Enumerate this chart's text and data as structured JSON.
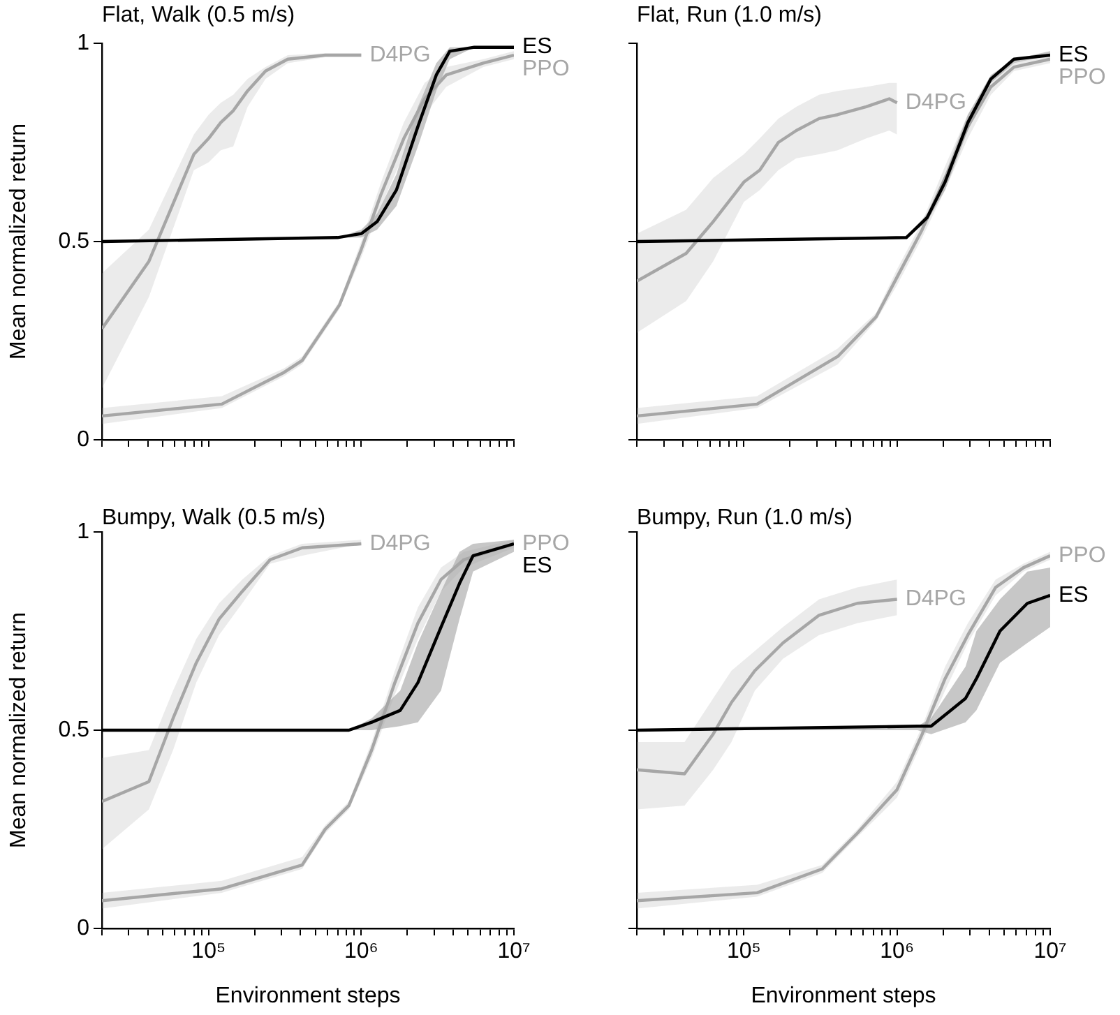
{
  "chart_data": [
    {
      "type": "line",
      "title": "Flat, Walk (0.5 m/s)",
      "ylabel": "Mean normalized return",
      "log": "x",
      "tick_labels": "y",
      "xlim": [
        20000,
        10000000
      ],
      "ylim": [
        0,
        1
      ],
      "yticks": [
        0,
        0.5,
        1
      ],
      "xticks": [
        {
          "value": 20000,
          "label": null
        },
        {
          "value": 30000,
          "label": null
        },
        {
          "value": 40000,
          "label": null
        },
        {
          "value": 50000,
          "label": null
        },
        {
          "value": 60000,
          "label": null
        },
        {
          "value": 70000,
          "label": null
        },
        {
          "value": 80000,
          "label": null
        },
        {
          "value": 90000,
          "label": null
        },
        {
          "value": 100000,
          "label": null
        },
        {
          "value": 200000,
          "label": null
        },
        {
          "value": 300000,
          "label": null
        },
        {
          "value": 400000,
          "label": null
        },
        {
          "value": 500000,
          "label": null
        },
        {
          "value": 600000,
          "label": null
        },
        {
          "value": 700000,
          "label": null
        },
        {
          "value": 800000,
          "label": null
        },
        {
          "value": 900000,
          "label": null
        },
        {
          "value": 1000000,
          "label": null
        },
        {
          "value": 2000000,
          "label": null
        },
        {
          "value": 3000000,
          "label": null
        },
        {
          "value": 4000000,
          "label": null
        },
        {
          "value": 5000000,
          "label": null
        },
        {
          "value": 6000000,
          "label": null
        },
        {
          "value": 7000000,
          "label": null
        },
        {
          "value": 8000000,
          "label": null
        },
        {
          "value": 9000000,
          "label": null
        },
        {
          "value": 10000000,
          "label": null
        }
      ],
      "series": [
        {
          "name": "D4PG",
          "color": "#a6a6a6",
          "x": [
            20000,
            40600,
            80000,
            100000,
            120000,
            145000,
            180000,
            236000,
            330000,
            580000,
            1000000
          ],
          "values": [
            0.28,
            0.45,
            0.72,
            0.76,
            0.8,
            0.83,
            0.88,
            0.93,
            0.96,
            0.97,
            0.97
          ],
          "lower": [
            0.13,
            0.36,
            0.68,
            0.7,
            0.73,
            0.74,
            0.84,
            0.91,
            0.95,
            0.965,
            0.965
          ],
          "upper": [
            0.42,
            0.53,
            0.77,
            0.82,
            0.85,
            0.87,
            0.91,
            0.94,
            0.97,
            0.975,
            0.975
          ]
        },
        {
          "name": "PPO",
          "color": "#a6a6a6",
          "x": [
            20000,
            122000,
            312000,
            410000,
            720000,
            1000000,
            1350000,
            1900000,
            2600000,
            3600000,
            6300000,
            10000000
          ],
          "values": [
            0.06,
            0.09,
            0.17,
            0.2,
            0.34,
            0.48,
            0.62,
            0.76,
            0.86,
            0.92,
            0.95,
            0.97
          ],
          "lower": [
            0.04,
            0.08,
            0.16,
            0.19,
            0.33,
            0.46,
            0.59,
            0.72,
            0.82,
            0.89,
            0.94,
            0.96
          ],
          "upper": [
            0.08,
            0.11,
            0.18,
            0.21,
            0.35,
            0.5,
            0.65,
            0.8,
            0.9,
            0.94,
            0.96,
            0.98
          ]
        },
        {
          "name": "ES",
          "color": "#000000",
          "x": [
            20000,
            700000,
            1000000,
            1270000,
            1700000,
            2350000,
            3100000,
            3800000,
            5500000,
            10000000
          ],
          "values": [
            0.5,
            0.51,
            0.52,
            0.55,
            0.63,
            0.79,
            0.92,
            0.98,
            0.99,
            0.99
          ],
          "lower": [
            0.5,
            0.51,
            0.51,
            0.53,
            0.59,
            0.74,
            0.88,
            0.96,
            0.99,
            0.99
          ],
          "upper": [
            0.5,
            0.51,
            0.53,
            0.57,
            0.67,
            0.84,
            0.95,
            0.99,
            0.99,
            0.99
          ]
        }
      ]
    },
    {
      "type": "line",
      "title": "Flat, Run (1.0 m/s)",
      "log": "x",
      "tick_labels": false,
      "xlim": [
        20000,
        10000000
      ],
      "ylim": [
        0,
        1
      ],
      "yticks": [
        {
          "value": 0,
          "label": null
        },
        {
          "value": 0.5,
          "label": null
        },
        {
          "value": 1,
          "label": null
        }
      ],
      "xticks": [
        {
          "value": 20000,
          "label": null
        },
        {
          "value": 30000,
          "label": null
        },
        {
          "value": 40000,
          "label": null
        },
        {
          "value": 50000,
          "label": null
        },
        {
          "value": 60000,
          "label": null
        },
        {
          "value": 70000,
          "label": null
        },
        {
          "value": 80000,
          "label": null
        },
        {
          "value": 90000,
          "label": null
        },
        {
          "value": 100000,
          "label": null
        },
        {
          "value": 200000,
          "label": null
        },
        {
          "value": 300000,
          "label": null
        },
        {
          "value": 400000,
          "label": null
        },
        {
          "value": 500000,
          "label": null
        },
        {
          "value": 600000,
          "label": null
        },
        {
          "value": 700000,
          "label": null
        },
        {
          "value": 800000,
          "label": null
        },
        {
          "value": 900000,
          "label": null
        },
        {
          "value": 1000000,
          "label": null
        },
        {
          "value": 2000000,
          "label": null
        },
        {
          "value": 3000000,
          "label": null
        },
        {
          "value": 4000000,
          "label": null
        },
        {
          "value": 5000000,
          "label": null
        },
        {
          "value": 6000000,
          "label": null
        },
        {
          "value": 7000000,
          "label": null
        },
        {
          "value": 8000000,
          "label": null
        },
        {
          "value": 9000000,
          "label": null
        },
        {
          "value": 10000000,
          "label": null
        }
      ],
      "series": [
        {
          "name": "D4PG",
          "color": "#a6a6a6",
          "x": [
            20000,
            42000,
            63000,
            100000,
            127000,
            168000,
            220000,
            310000,
            410000,
            630000,
            890000,
            1000000
          ],
          "values": [
            0.4,
            0.47,
            0.55,
            0.65,
            0.68,
            0.75,
            0.78,
            0.81,
            0.82,
            0.84,
            0.86,
            0.85
          ],
          "lower": [
            0.27,
            0.35,
            0.45,
            0.6,
            0.63,
            0.68,
            0.71,
            0.72,
            0.73,
            0.76,
            0.78,
            0.77
          ],
          "upper": [
            0.52,
            0.58,
            0.66,
            0.72,
            0.76,
            0.81,
            0.84,
            0.87,
            0.88,
            0.89,
            0.9,
            0.9
          ]
        },
        {
          "name": "PPO",
          "color": "#a6a6a6",
          "x": [
            20000,
            122000,
            410000,
            730000,
            1000000,
            1460000,
            2060000,
            2900000,
            4100000,
            5800000,
            10000000
          ],
          "values": [
            0.06,
            0.09,
            0.21,
            0.31,
            0.41,
            0.53,
            0.66,
            0.79,
            0.89,
            0.94,
            0.96
          ],
          "lower": [
            0.04,
            0.08,
            0.19,
            0.3,
            0.39,
            0.51,
            0.63,
            0.76,
            0.87,
            0.93,
            0.95
          ],
          "upper": [
            0.08,
            0.11,
            0.23,
            0.32,
            0.43,
            0.55,
            0.69,
            0.82,
            0.91,
            0.95,
            0.97
          ]
        },
        {
          "name": "ES",
          "color": "#000000",
          "x": [
            20000,
            1150000,
            1570000,
            2060000,
            2900000,
            4100000,
            5800000,
            10000000
          ],
          "values": [
            0.5,
            0.51,
            0.56,
            0.65,
            0.8,
            0.91,
            0.96,
            0.97
          ],
          "lower": [
            0.5,
            0.51,
            0.55,
            0.63,
            0.78,
            0.9,
            0.95,
            0.97
          ],
          "upper": [
            0.5,
            0.51,
            0.57,
            0.67,
            0.82,
            0.92,
            0.96,
            0.98
          ]
        }
      ]
    },
    {
      "type": "line",
      "title": "Bumpy, Walk (0.5 m/s)",
      "xlabel": "Environment steps",
      "ylabel": "Mean normalized return",
      "log": "x",
      "xlim": [
        20000,
        10000000
      ],
      "ylim": [
        0,
        1
      ],
      "yticks": [
        0,
        0.5,
        1
      ],
      "xticks": [
        {
          "value": 20000,
          "label": null
        },
        {
          "value": 30000,
          "label": null
        },
        {
          "value": 40000,
          "label": null
        },
        {
          "value": 50000,
          "label": null
        },
        {
          "value": 60000,
          "label": null
        },
        {
          "value": 70000,
          "label": null
        },
        {
          "value": 80000,
          "label": null
        },
        {
          "value": 90000,
          "label": null
        },
        {
          "value": 100000,
          "label": "10⁵"
        },
        {
          "value": 200000,
          "label": null
        },
        {
          "value": 300000,
          "label": null
        },
        {
          "value": 400000,
          "label": null
        },
        {
          "value": 500000,
          "label": null
        },
        {
          "value": 600000,
          "label": null
        },
        {
          "value": 700000,
          "label": null
        },
        {
          "value": 800000,
          "label": null
        },
        {
          "value": 900000,
          "label": null
        },
        {
          "value": 1000000,
          "label": "10⁶"
        },
        {
          "value": 2000000,
          "label": null
        },
        {
          "value": 3000000,
          "label": null
        },
        {
          "value": 4000000,
          "label": null
        },
        {
          "value": 5000000,
          "label": null
        },
        {
          "value": 6000000,
          "label": null
        },
        {
          "value": 7000000,
          "label": null
        },
        {
          "value": 8000000,
          "label": null
        },
        {
          "value": 9000000,
          "label": null
        },
        {
          "value": 10000000,
          "label": "10⁷"
        }
      ],
      "series": [
        {
          "name": "D4PG",
          "color": "#a6a6a6",
          "x": [
            20000,
            40600,
            58500,
            83000,
            117000,
            166000,
            253000,
            410000,
            1000000
          ],
          "values": [
            0.32,
            0.37,
            0.53,
            0.67,
            0.78,
            0.85,
            0.93,
            0.96,
            0.97
          ],
          "lower": [
            0.2,
            0.3,
            0.45,
            0.62,
            0.74,
            0.82,
            0.92,
            0.94,
            0.97
          ],
          "upper": [
            0.43,
            0.45,
            0.6,
            0.73,
            0.82,
            0.88,
            0.94,
            0.97,
            0.98
          ]
        },
        {
          "name": "PPO",
          "color": "#a6a6a6",
          "x": [
            20000,
            122000,
            410000,
            580000,
            830000,
            1170000,
            1660000,
            2350000,
            3330000,
            4700000,
            10000000
          ],
          "values": [
            0.07,
            0.1,
            0.16,
            0.25,
            0.31,
            0.45,
            0.62,
            0.77,
            0.88,
            0.93,
            0.97
          ],
          "lower": [
            0.05,
            0.09,
            0.15,
            0.24,
            0.3,
            0.43,
            0.59,
            0.73,
            0.85,
            0.91,
            0.96
          ],
          "upper": [
            0.09,
            0.12,
            0.18,
            0.26,
            0.32,
            0.47,
            0.65,
            0.81,
            0.91,
            0.95,
            0.98
          ]
        },
        {
          "name": "ES",
          "color": "#000000",
          "x": [
            20000,
            830000,
            1170000,
            1800000,
            2350000,
            3330000,
            4400000,
            5400000,
            10000000
          ],
          "values": [
            0.5,
            0.5,
            0.52,
            0.55,
            0.62,
            0.76,
            0.87,
            0.94,
            0.97
          ],
          "lower": [
            0.5,
            0.5,
            0.5,
            0.51,
            0.52,
            0.6,
            0.78,
            0.9,
            0.95
          ],
          "upper": [
            0.5,
            0.5,
            0.53,
            0.6,
            0.72,
            0.85,
            0.95,
            0.97,
            0.98
          ]
        }
      ]
    },
    {
      "type": "line",
      "title": "Bumpy, Run (1.0 m/s)",
      "xlabel": "Environment steps",
      "log": "x",
      "tick_labels": "x",
      "xlim": [
        20000,
        10000000
      ],
      "ylim": [
        0,
        1
      ],
      "yticks": [
        {
          "value": 0,
          "label": null
        },
        {
          "value": 0.5,
          "label": null
        },
        {
          "value": 1,
          "label": null
        }
      ],
      "xticks": [
        {
          "value": 20000,
          "label": null
        },
        {
          "value": 30000,
          "label": null
        },
        {
          "value": 40000,
          "label": null
        },
        {
          "value": 50000,
          "label": null
        },
        {
          "value": 60000,
          "label": null
        },
        {
          "value": 70000,
          "label": null
        },
        {
          "value": 80000,
          "label": null
        },
        {
          "value": 90000,
          "label": null
        },
        {
          "value": 100000,
          "label": "10⁵"
        },
        {
          "value": 200000,
          "label": null
        },
        {
          "value": 300000,
          "label": null
        },
        {
          "value": 400000,
          "label": null
        },
        {
          "value": 500000,
          "label": null
        },
        {
          "value": 600000,
          "label": null
        },
        {
          "value": 700000,
          "label": null
        },
        {
          "value": 800000,
          "label": null
        },
        {
          "value": 900000,
          "label": null
        },
        {
          "value": 1000000,
          "label": "10⁶"
        },
        {
          "value": 2000000,
          "label": null
        },
        {
          "value": 3000000,
          "label": null
        },
        {
          "value": 4000000,
          "label": null
        },
        {
          "value": 5000000,
          "label": null
        },
        {
          "value": 6000000,
          "label": null
        },
        {
          "value": 7000000,
          "label": null
        },
        {
          "value": 8000000,
          "label": null
        },
        {
          "value": 9000000,
          "label": null
        },
        {
          "value": 10000000,
          "label": "10⁷"
        }
      ],
      "series": [
        {
          "name": "D4PG",
          "color": "#a6a6a6",
          "x": [
            20000,
            41000,
            63000,
            83000,
            118000,
            180000,
            310000,
            550000,
            1000000
          ],
          "values": [
            0.4,
            0.39,
            0.49,
            0.57,
            0.65,
            0.72,
            0.79,
            0.82,
            0.83
          ],
          "lower": [
            0.3,
            0.31,
            0.4,
            0.47,
            0.6,
            0.68,
            0.74,
            0.77,
            0.79
          ],
          "upper": [
            0.47,
            0.47,
            0.58,
            0.65,
            0.7,
            0.76,
            0.83,
            0.86,
            0.88
          ]
        },
        {
          "name": "PPO",
          "color": "#a6a6a6",
          "x": [
            20000,
            122000,
            325000,
            550000,
            1000000,
            1460000,
            2060000,
            2900000,
            4400000,
            6700000,
            10000000
          ],
          "values": [
            0.07,
            0.09,
            0.15,
            0.24,
            0.35,
            0.49,
            0.63,
            0.74,
            0.86,
            0.91,
            0.94
          ],
          "lower": [
            0.05,
            0.08,
            0.14,
            0.23,
            0.33,
            0.47,
            0.6,
            0.72,
            0.84,
            0.9,
            0.93
          ],
          "upper": [
            0.09,
            0.11,
            0.16,
            0.25,
            0.37,
            0.51,
            0.66,
            0.77,
            0.88,
            0.92,
            0.95
          ]
        },
        {
          "name": "ES",
          "color": "#000000",
          "x": [
            20000,
            1360000,
            1670000,
            2800000,
            3300000,
            4700000,
            7100000,
            10000000
          ],
          "values": [
            0.5,
            0.51,
            0.51,
            0.58,
            0.63,
            0.75,
            0.82,
            0.84
          ],
          "lower": [
            0.5,
            0.5,
            0.49,
            0.52,
            0.55,
            0.67,
            0.72,
            0.76
          ],
          "upper": [
            0.5,
            0.51,
            0.53,
            0.66,
            0.75,
            0.83,
            0.9,
            0.91
          ]
        }
      ]
    }
  ]
}
